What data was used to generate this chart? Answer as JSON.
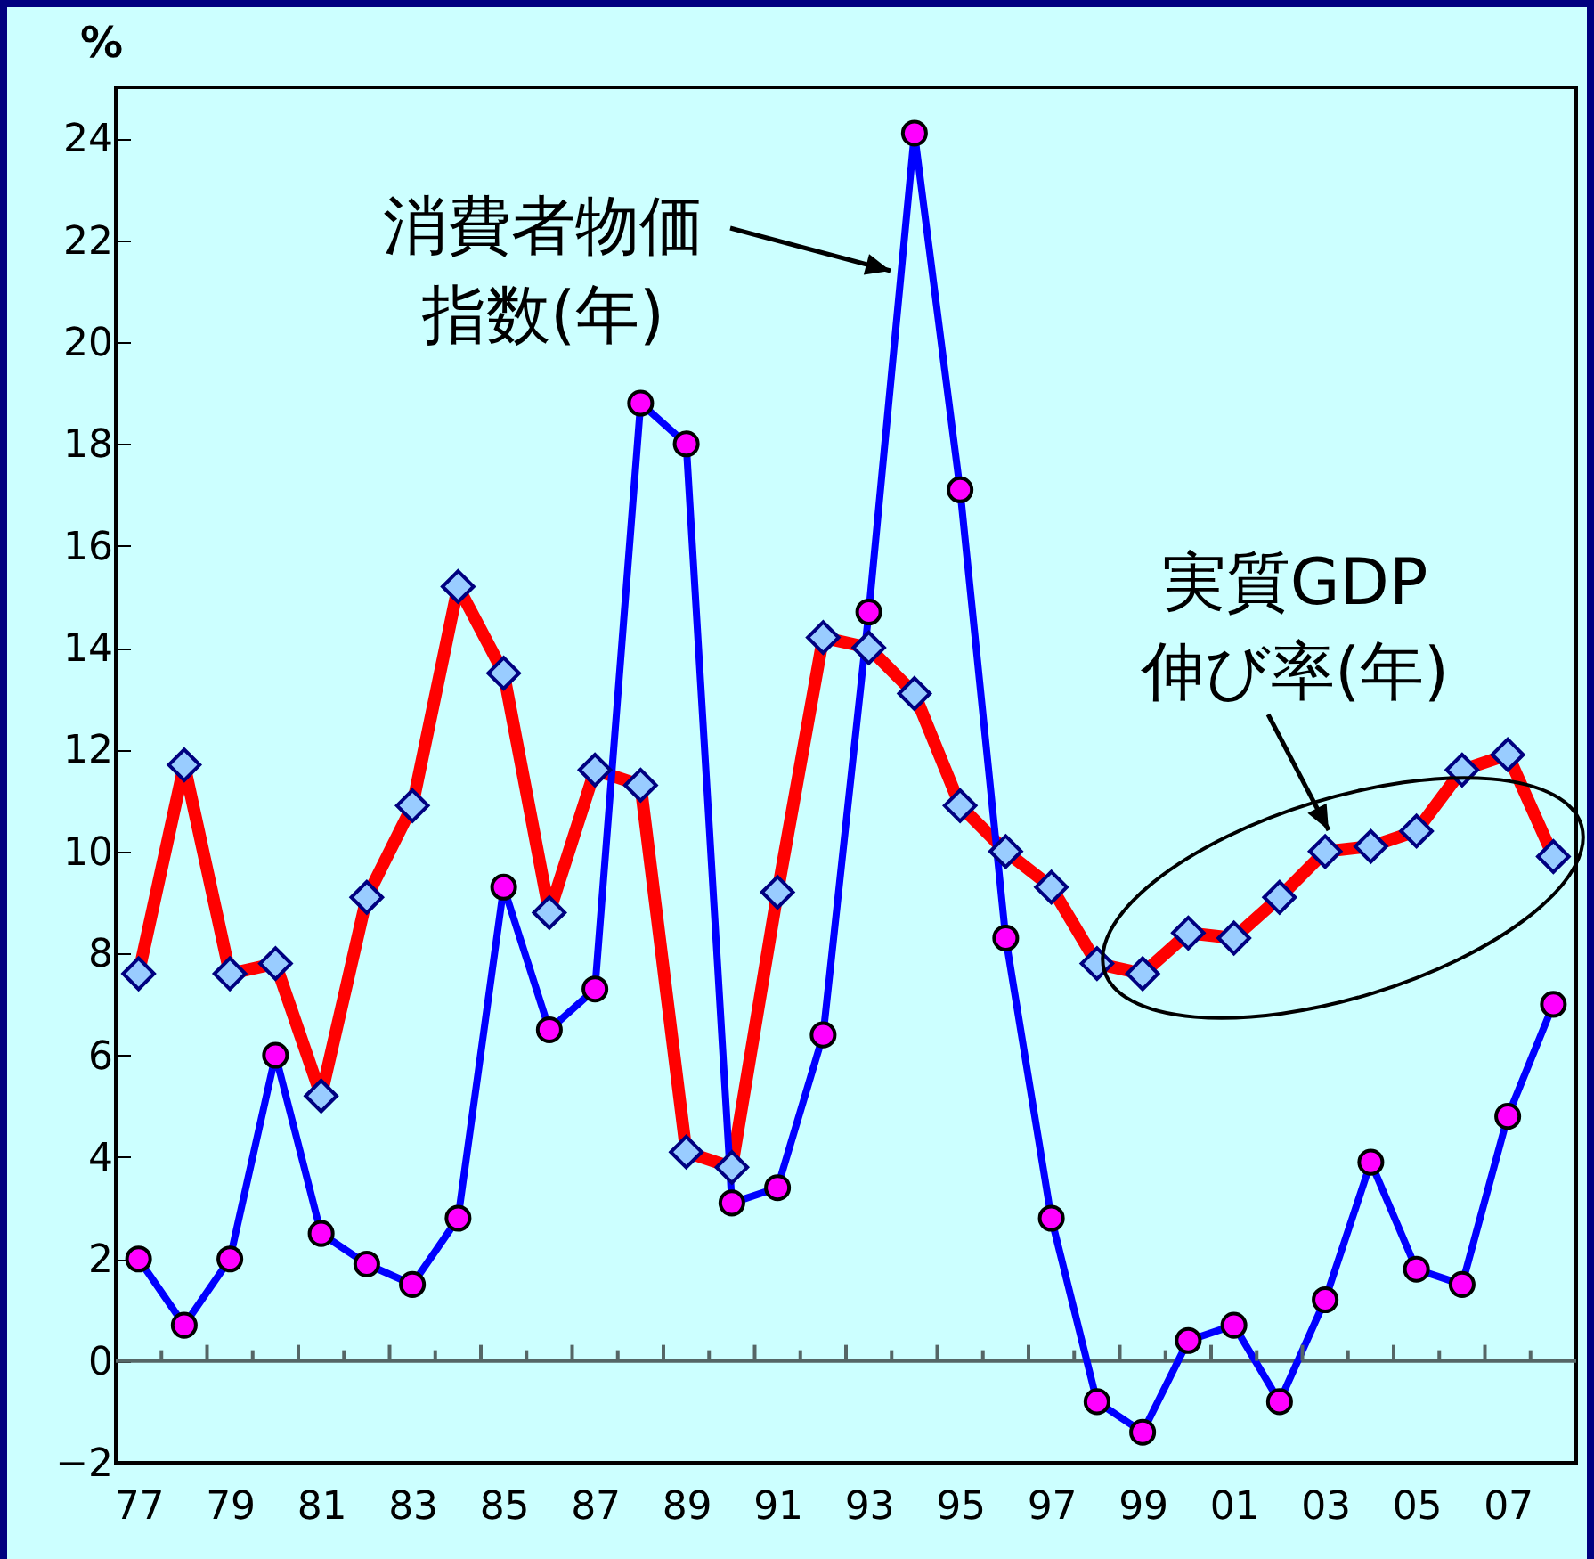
{
  "chart_data": {
    "type": "line",
    "ylabel": "%",
    "categories": [
      "77",
      null,
      "79",
      null,
      "81",
      null,
      "83",
      null,
      "85",
      null,
      "87",
      null,
      "89",
      null,
      "91",
      null,
      "93",
      null,
      "95",
      null,
      "97",
      null,
      "99",
      null,
      "01",
      null,
      "03",
      null,
      "05",
      null,
      "07",
      null
    ],
    "series": [
      {
        "name": "実質GDP伸び率(年)",
        "color": "#ff0000",
        "marker": "diamond",
        "values": [
          7.6,
          11.7,
          7.6,
          7.8,
          5.2,
          9.1,
          10.9,
          15.2,
          13.5,
          8.8,
          11.6,
          11.3,
          4.1,
          3.8,
          9.2,
          14.2,
          14.0,
          13.1,
          10.9,
          10.0,
          9.3,
          7.8,
          7.6,
          8.4,
          8.3,
          9.1,
          10.0,
          10.1,
          10.4,
          11.6,
          11.9,
          9.9
        ]
      },
      {
        "name": "消費者物価指数(年)",
        "color": "#0000ff",
        "marker": "circle",
        "values": [
          2.0,
          0.7,
          2.0,
          6.0,
          2.5,
          1.9,
          1.5,
          2.8,
          9.3,
          6.5,
          7.3,
          18.8,
          18.0,
          3.1,
          3.4,
          6.4,
          14.7,
          24.1,
          17.1,
          8.3,
          2.8,
          -0.8,
          -1.4,
          0.4,
          0.7,
          -0.8,
          1.2,
          3.9,
          1.8,
          1.5,
          4.8,
          7.0
        ]
      }
    ],
    "ylim": [
      -2,
      25
    ],
    "yticks": [
      -2,
      0,
      2,
      4,
      6,
      8,
      10,
      12,
      14,
      16,
      18,
      20,
      22,
      24
    ],
    "ref_lines": [
      {
        "axis": "y",
        "value": 0
      }
    ],
    "grid": false
  }
}
